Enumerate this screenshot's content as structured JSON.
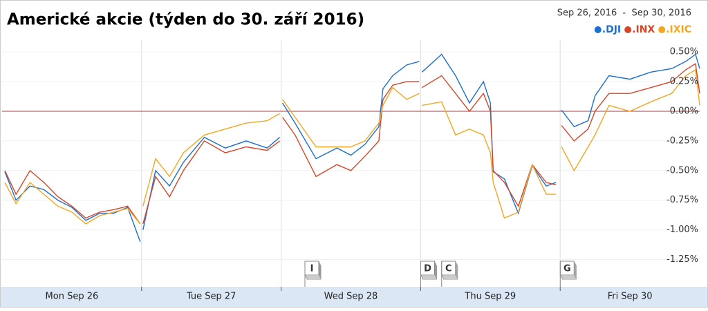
{
  "chart_data": {
    "type": "line",
    "title": "Americké akcie (týden do 30. září 2016)",
    "date_range": "Sep 26, 2016  -  Sep 30, 2016",
    "xlim": [
      0,
      5
    ],
    "xticks": [
      {
        "value": 0.5,
        "label": "Mon Sep 26"
      },
      {
        "value": 1.5,
        "label": "Tue Sep 27"
      },
      {
        "value": 2.5,
        "label": "Wed Sep 28"
      },
      {
        "value": 3.5,
        "label": "Thu Sep 29"
      },
      {
        "value": 4.5,
        "label": "Fri Sep 30"
      }
    ],
    "ylim": [
      -1.48,
      0.6
    ],
    "yticks": [
      {
        "value": 0.5,
        "label": "0.50%"
      },
      {
        "value": 0.25,
        "label": "0.25%"
      },
      {
        "value": 0,
        "label": "0.00%"
      },
      {
        "value": -0.25,
        "label": "-0.25%"
      },
      {
        "value": -0.5,
        "label": "-0.50%"
      },
      {
        "value": -0.75,
        "label": "-0.75%"
      },
      {
        "value": -1,
        "label": "-1.00%"
      },
      {
        "value": -1.25,
        "label": "-1.25%"
      }
    ],
    "zero_line_color": "#a04040",
    "x": [
      0.02,
      0.1,
      0.2,
      0.3,
      0.4,
      0.5,
      0.6,
      0.7,
      0.8,
      0.9,
      0.99,
      1.0,
      1.01,
      1.1,
      1.2,
      1.3,
      1.45,
      1.6,
      1.75,
      1.9,
      1.99,
      2.0,
      2.01,
      2.1,
      2.25,
      2.4,
      2.5,
      2.6,
      2.7,
      2.73,
      2.8,
      2.9,
      2.99,
      3.0,
      3.01,
      3.15,
      3.25,
      3.35,
      3.45,
      3.5,
      3.52,
      3.6,
      3.7,
      3.8,
      3.9,
      3.97,
      3.99,
      4.01,
      4.1,
      4.2,
      4.25,
      4.35,
      4.5,
      4.65,
      4.8,
      4.9,
      4.97,
      5.0
    ],
    "series": [
      {
        "name": ".DJI",
        "color": "#1a6fd0",
        "values": [
          -0.51,
          -0.75,
          -0.63,
          -0.66,
          -0.75,
          -0.81,
          -0.92,
          -0.86,
          -0.86,
          -0.81,
          -1.1,
          null,
          -1.0,
          -0.5,
          -0.63,
          -0.43,
          -0.22,
          -0.31,
          -0.25,
          -0.31,
          -0.22,
          null,
          0.07,
          -0.1,
          -0.4,
          -0.31,
          -0.37,
          -0.28,
          -0.13,
          0.19,
          0.3,
          0.39,
          0.42,
          null,
          0.33,
          0.48,
          0.3,
          0.07,
          0.25,
          0.07,
          -0.51,
          -0.57,
          -0.86,
          -0.46,
          -0.63,
          -0.6,
          null,
          0.01,
          -0.13,
          -0.08,
          0.13,
          0.3,
          0.27,
          0.33,
          0.36,
          0.42,
          0.48,
          0.36
        ]
      },
      {
        "name": ".INX",
        "color": "#d64527",
        "values": [
          -0.5,
          -0.7,
          -0.5,
          -0.6,
          -0.72,
          -0.8,
          -0.9,
          -0.85,
          -0.83,
          -0.8,
          -0.95,
          null,
          -0.95,
          -0.55,
          -0.72,
          -0.5,
          -0.25,
          -0.35,
          -0.3,
          -0.33,
          -0.25,
          null,
          -0.05,
          -0.2,
          -0.55,
          -0.45,
          -0.5,
          -0.38,
          -0.25,
          0.1,
          0.22,
          0.25,
          0.25,
          null,
          0.2,
          0.3,
          0.15,
          0.0,
          0.15,
          0.0,
          -0.5,
          -0.6,
          -0.8,
          -0.45,
          -0.6,
          -0.62,
          null,
          -0.12,
          -0.25,
          -0.15,
          0.0,
          0.15,
          0.15,
          0.2,
          0.25,
          0.35,
          0.4,
          0.15
        ]
      },
      {
        "name": ".IXIC",
        "color": "#f4a622",
        "values": [
          -0.6,
          -0.78,
          -0.6,
          -0.7,
          -0.8,
          -0.85,
          -0.95,
          -0.88,
          -0.85,
          -0.82,
          -0.95,
          null,
          -0.8,
          -0.4,
          -0.55,
          -0.35,
          -0.2,
          -0.15,
          -0.1,
          -0.08,
          -0.02,
          null,
          0.1,
          -0.05,
          -0.3,
          -0.3,
          -0.3,
          -0.25,
          -0.1,
          0.05,
          0.2,
          0.1,
          0.15,
          null,
          0.05,
          0.08,
          -0.2,
          -0.15,
          -0.2,
          -0.35,
          -0.6,
          -0.9,
          -0.85,
          -0.45,
          -0.7,
          -0.7,
          null,
          -0.3,
          -0.5,
          -0.3,
          -0.2,
          0.05,
          0.0,
          0.08,
          0.15,
          0.3,
          0.35,
          0.05
        ]
      }
    ],
    "annotations": [
      {
        "label": "I",
        "x": 2.22
      },
      {
        "label": "D",
        "x": 3.05
      },
      {
        "label": "C",
        "x": 3.2
      },
      {
        "label": "G",
        "x": 4.05
      }
    ]
  }
}
